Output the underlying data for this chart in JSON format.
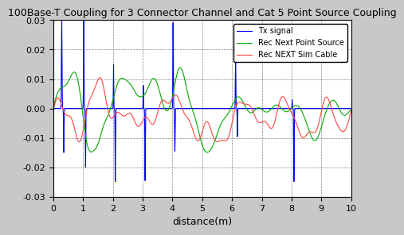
{
  "title": "100Base-T Coupling for 3 Connector Channel and Cat 5 Point Source Coupling",
  "xlabel": "distance(m)",
  "ylabel": "",
  "xlim": [
    0,
    10
  ],
  "ylim": [
    -0.03,
    0.03
  ],
  "yticks": [
    -0.03,
    -0.02,
    -0.01,
    0,
    0.01,
    0.02,
    0.03
  ],
  "xticks": [
    0,
    1,
    2,
    3,
    4,
    5,
    6,
    7,
    8,
    9,
    10
  ],
  "background_color": "#c8c8c8",
  "plot_bg_color": "#ffffff",
  "grid_color": "#555555",
  "line_colors": {
    "tx": "#0000ff",
    "next_point": "#00aa00",
    "next_sim": "#ff4444"
  },
  "legend_labels": [
    "Tx signal",
    "Rec Next Point Source",
    "Rec NEXT Sim Cable"
  ],
  "title_fontsize": 9,
  "label_fontsize": 9,
  "tick_fontsize": 8
}
